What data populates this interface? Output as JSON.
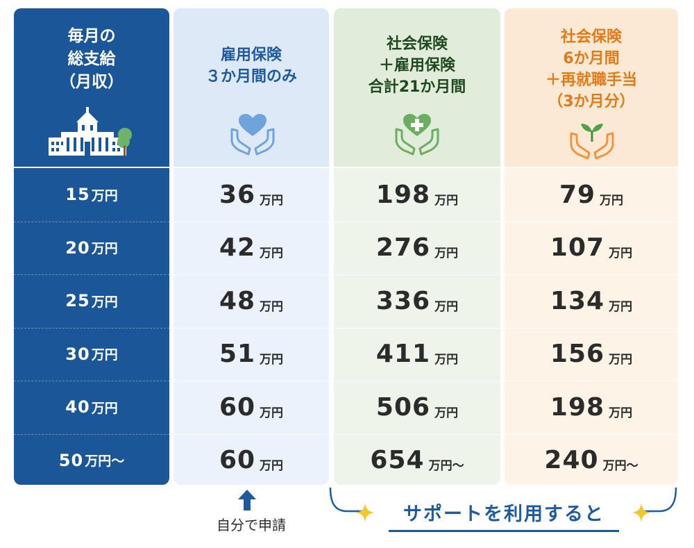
{
  "columns": {
    "income": {
      "header": "毎月の\n総支給\n（月収）",
      "icon": "government-building-icon"
    },
    "employment": {
      "header": "雇用保険\n３か月間のみ",
      "icon": "hands-heart-icon",
      "accent": "#1f5aa0"
    },
    "social": {
      "header": "社会保険\n＋雇用保険\n合計21か月間",
      "icon": "hands-heart-plus-icon",
      "accent": "#1f4a1f"
    },
    "rehire": {
      "header": "社会保険\n6か月間\n＋再就職手当\n（3か月分）",
      "icon": "hands-sprout-icon",
      "accent": "#e27a18"
    }
  },
  "rows": [
    {
      "income": "15",
      "employment": "36",
      "social": "198",
      "rehire": "79"
    },
    {
      "income": "20",
      "employment": "42",
      "social": "276",
      "rehire": "107"
    },
    {
      "income": "25",
      "employment": "48",
      "social": "336",
      "rehire": "134"
    },
    {
      "income": "30",
      "employment": "51",
      "social": "411",
      "rehire": "156"
    },
    {
      "income": "40",
      "employment": "60",
      "social": "506",
      "rehire": "198"
    },
    {
      "income": "50",
      "employment": "60",
      "social": "654",
      "rehire": "240"
    }
  ],
  "units": {
    "yen10k": "万円",
    "yen10k_plus": "万円～"
  },
  "footer": {
    "self_apply": "自分で申請",
    "support": "サポートを利用すると"
  },
  "colors": {
    "navy": "#1b5798",
    "blue_text": "#1f5aa0",
    "green_text": "#1f4a1f",
    "orange_text": "#e27a18"
  }
}
